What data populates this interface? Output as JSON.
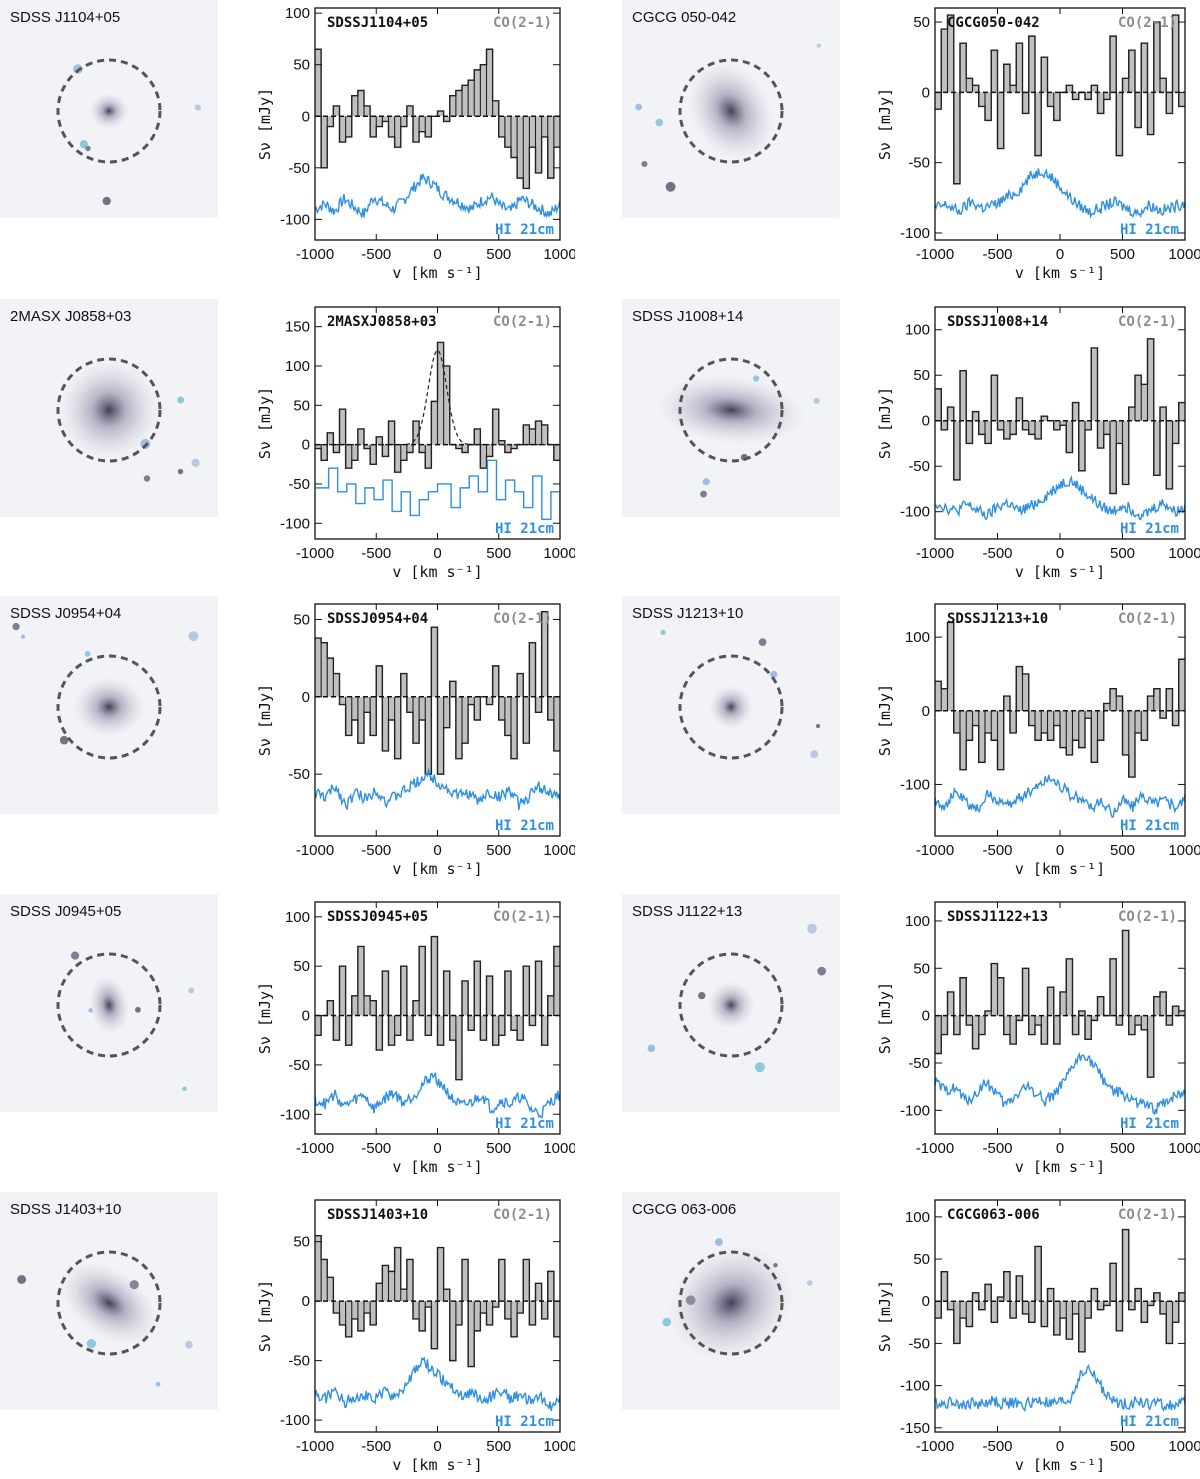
{
  "chart_data": [
    {
      "type": "bar",
      "name": "SDSSJ1104+05",
      "image_label": "SDSS J1104+05",
      "line_label": "CO(2-1)",
      "hi_label": "HI 21cm",
      "xlabel": "v [km s⁻¹]",
      "ylabel": "Sν [mJy]",
      "xlim": [
        -1000,
        1000
      ],
      "ylim": [
        -120,
        105
      ],
      "xticks": [
        -1000,
        -500,
        0,
        500,
        1000
      ],
      "yticks": [
        -100,
        -50,
        0,
        50,
        100
      ],
      "co_bins": [
        -1000,
        -950,
        -900,
        -850,
        -800,
        -750,
        -700,
        -650,
        -600,
        -550,
        -500,
        -450,
        -400,
        -350,
        -300,
        -250,
        -200,
        -150,
        -100,
        -50,
        0,
        50,
        100,
        150,
        200,
        250,
        300,
        350,
        400,
        450,
        500,
        550,
        600,
        650,
        700,
        750,
        800,
        850,
        900,
        950
      ],
      "co_values": [
        65,
        -50,
        -10,
        10,
        -25,
        -20,
        20,
        25,
        10,
        -20,
        -10,
        -5,
        -20,
        -30,
        -10,
        10,
        -25,
        -15,
        -20,
        0,
        5,
        -5,
        20,
        25,
        30,
        35,
        45,
        50,
        65,
        15,
        -20,
        -30,
        -40,
        -60,
        -70,
        -30,
        -55,
        -20,
        -60,
        -30
      ],
      "hi_values": [
        -90,
        -85,
        -92,
        -80,
        -88,
        -95,
        -78,
        -85,
        -90,
        -82,
        -70,
        -60,
        -65,
        -75,
        -80,
        -85,
        -90,
        -82,
        -78,
        -88,
        -92,
        -80,
        -85,
        -90,
        -95,
        -85
      ],
      "fit": null
    },
    {
      "type": "bar",
      "name": "CGCG050-042",
      "image_label": "CGCG 050-042",
      "line_label": "CO(2-1)",
      "hi_label": "HI 21cm",
      "xlabel": "v [km s⁻¹]",
      "ylabel": "Sν [mJy]",
      "xlim": [
        -1000,
        1000
      ],
      "ylim": [
        -105,
        60
      ],
      "xticks": [
        -1000,
        -500,
        0,
        500,
        1000
      ],
      "yticks": [
        -100,
        -50,
        0,
        50
      ],
      "co_bins": [
        -1000,
        -950,
        -900,
        -850,
        -800,
        -750,
        -700,
        -650,
        -600,
        -550,
        -500,
        -450,
        -400,
        -350,
        -300,
        -250,
        -200,
        -150,
        -100,
        -50,
        0,
        50,
        100,
        150,
        200,
        250,
        300,
        350,
        400,
        450,
        500,
        550,
        600,
        650,
        700,
        750,
        800,
        850,
        900,
        950
      ],
      "co_values": [
        -12,
        45,
        55,
        -65,
        35,
        10,
        5,
        -10,
        -20,
        30,
        -40,
        20,
        5,
        35,
        -15,
        40,
        -45,
        25,
        -10,
        -20,
        0,
        5,
        -5,
        0,
        -5,
        5,
        -15,
        -5,
        40,
        -45,
        10,
        30,
        -25,
        35,
        -30,
        50,
        10,
        -15,
        55,
        -10
      ],
      "hi_values": [
        -82,
        -80,
        -85,
        -78,
        -82,
        -80,
        -75,
        -70,
        -60,
        -55,
        -62,
        -72,
        -80,
        -85,
        -82,
        -78,
        -82,
        -86,
        -80,
        -84,
        -82,
        -78
      ],
      "fit": null
    },
    {
      "type": "bar",
      "name": "2MASXJ0858+03",
      "image_label": "2MASX J0858+03",
      "line_label": "CO(2-1)",
      "hi_label": "HI 21cm",
      "xlabel": "v [km s⁻¹]",
      "ylabel": "Sν [mJy]",
      "xlim": [
        -1000,
        1000
      ],
      "ylim": [
        -120,
        175
      ],
      "xticks": [
        -1000,
        -500,
        0,
        500,
        1000
      ],
      "yticks": [
        -100,
        -50,
        0,
        50,
        100,
        150
      ],
      "co_bins": [
        -1000,
        -950,
        -900,
        -850,
        -800,
        -750,
        -700,
        -650,
        -600,
        -550,
        -500,
        -450,
        -400,
        -350,
        -300,
        -250,
        -200,
        -150,
        -100,
        -50,
        0,
        50,
        100,
        150,
        200,
        250,
        300,
        350,
        400,
        450,
        500,
        550,
        600,
        650,
        700,
        750,
        800,
        850,
        900,
        950
      ],
      "co_values": [
        -5,
        -20,
        15,
        -10,
        45,
        -30,
        -20,
        20,
        -5,
        -25,
        10,
        -15,
        30,
        -35,
        -20,
        -10,
        30,
        -10,
        -30,
        55,
        130,
        100,
        0,
        -5,
        -10,
        0,
        20,
        -30,
        -15,
        45,
        5,
        -10,
        -5,
        0,
        25,
        20,
        30,
        25,
        0,
        -20
      ],
      "hi_values": [
        -55,
        -30,
        -60,
        -50,
        -75,
        -55,
        -70,
        -45,
        -85,
        -60,
        -90,
        -70,
        -60,
        -50,
        -80,
        -55,
        -40,
        -60,
        -20,
        -70,
        -45,
        -60,
        -80,
        -40,
        -95,
        -60,
        -100
      ],
      "fit": {
        "center": 0,
        "peak": 120,
        "sigma": 75
      }
    },
    {
      "type": "bar",
      "name": "SDSSJ1008+14",
      "image_label": "SDSS J1008+14",
      "line_label": "CO(2-1)",
      "hi_label": "HI 21cm",
      "xlabel": "v [km s⁻¹]",
      "ylabel": "Sν [mJy]",
      "xlim": [
        -1000,
        1000
      ],
      "ylim": [
        -130,
        125
      ],
      "xticks": [
        -1000,
        -500,
        0,
        500,
        1000
      ],
      "yticks": [
        -100,
        -50,
        0,
        50,
        100
      ],
      "co_bins": [
        -1000,
        -950,
        -900,
        -850,
        -800,
        -750,
        -700,
        -650,
        -600,
        -550,
        -500,
        -450,
        -400,
        -350,
        -300,
        -250,
        -200,
        -150,
        -100,
        -50,
        0,
        50,
        100,
        150,
        200,
        250,
        300,
        350,
        400,
        450,
        500,
        550,
        600,
        650,
        700,
        750,
        800,
        850,
        900,
        950
      ],
      "co_values": [
        35,
        -10,
        15,
        -65,
        55,
        -25,
        10,
        -15,
        -25,
        50,
        -10,
        -20,
        -15,
        25,
        -10,
        -15,
        -20,
        5,
        0,
        -10,
        -5,
        -35,
        20,
        -55,
        -10,
        80,
        -30,
        -15,
        -80,
        -25,
        -70,
        15,
        50,
        40,
        90,
        -60,
        15,
        -75,
        -25,
        20
      ],
      "hi_values": [
        -90,
        -95,
        -100,
        -92,
        -98,
        -105,
        -95,
        -90,
        -100,
        -95,
        -88,
        -80,
        -70,
        -65,
        -75,
        -85,
        -95,
        -100,
        -92,
        -98,
        -104,
        -96,
        -90,
        -100,
        -95
      ],
      "fit": null
    },
    {
      "type": "bar",
      "name": "SDSSJ0954+04",
      "image_label": "SDSS J0954+04",
      "line_label": "CO(2-1)",
      "hi_label": "HI 21cm",
      "xlabel": "v [km s⁻¹]",
      "ylabel": "Sν [mJy]",
      "xlim": [
        -1000,
        1000
      ],
      "ylim": [
        -90,
        60
      ],
      "xticks": [
        -1000,
        -500,
        0,
        500,
        1000
      ],
      "yticks": [
        -50,
        0,
        50
      ],
      "co_bins": [
        -1000,
        -950,
        -900,
        -850,
        -800,
        -750,
        -700,
        -650,
        -600,
        -550,
        -500,
        -450,
        -400,
        -350,
        -300,
        -250,
        -200,
        -150,
        -100,
        -50,
        0,
        50,
        100,
        150,
        200,
        250,
        300,
        350,
        400,
        450,
        500,
        550,
        600,
        650,
        700,
        750,
        800,
        850,
        900,
        950
      ],
      "co_values": [
        38,
        35,
        25,
        15,
        -5,
        -25,
        -15,
        -30,
        -10,
        -25,
        20,
        -35,
        -15,
        -40,
        15,
        -10,
        -30,
        -15,
        -50,
        45,
        -50,
        -20,
        10,
        -40,
        -30,
        -5,
        -15,
        0,
        -5,
        20,
        -15,
        -25,
        -40,
        15,
        -30,
        35,
        -10,
        55,
        -15,
        -35
      ],
      "hi_values": [
        -62,
        -65,
        -58,
        -70,
        -62,
        -66,
        -60,
        -68,
        -64,
        -60,
        -55,
        -50,
        -55,
        -60,
        -64,
        -62,
        -68,
        -62,
        -65,
        -60,
        -70,
        -64,
        -58,
        -62,
        -66
      ],
      "fit": null
    },
    {
      "type": "bar",
      "name": "SDSSJ1213+10",
      "image_label": "SDSS J1213+10",
      "line_label": "CO(2-1)",
      "hi_label": "HI 21cm",
      "xlabel": "v [km s⁻¹]",
      "ylabel": "Sν [mJy]",
      "xlim": [
        -1000,
        1000
      ],
      "ylim": [
        -170,
        145
      ],
      "xticks": [
        -1000,
        -500,
        0,
        500,
        1000
      ],
      "yticks": [
        -100,
        0,
        100
      ],
      "co_bins": [
        -1000,
        -950,
        -900,
        -850,
        -800,
        -750,
        -700,
        -650,
        -600,
        -550,
        -500,
        -450,
        -400,
        -350,
        -300,
        -250,
        -200,
        -150,
        -100,
        -50,
        0,
        50,
        100,
        150,
        200,
        250,
        300,
        350,
        400,
        450,
        500,
        550,
        600,
        650,
        700,
        750,
        800,
        850,
        900,
        950
      ],
      "co_values": [
        40,
        30,
        120,
        -30,
        -80,
        -40,
        -20,
        -70,
        -30,
        -40,
        -80,
        20,
        -30,
        60,
        50,
        -20,
        -40,
        -30,
        -40,
        -20,
        -50,
        -60,
        -40,
        -50,
        -10,
        -70,
        -40,
        10,
        30,
        20,
        -60,
        -90,
        -30,
        -40,
        20,
        30,
        -10,
        30,
        -20,
        70
      ],
      "hi_values": [
        -120,
        -130,
        -110,
        -125,
        -135,
        -115,
        -120,
        -130,
        -118,
        -110,
        -100,
        -90,
        -100,
        -115,
        -120,
        -130,
        -125,
        -140,
        -120,
        -130,
        -115,
        -125,
        -120,
        -130,
        -120
      ],
      "fit": null
    },
    {
      "type": "bar",
      "name": "SDSSJ0945+05",
      "image_label": "SDSS J0945+05",
      "line_label": "CO(2-1)",
      "hi_label": "HI 21cm",
      "xlabel": "v [km s⁻¹]",
      "ylabel": "Sν [mJy]",
      "xlim": [
        -1000,
        1000
      ],
      "ylim": [
        -120,
        115
      ],
      "xticks": [
        -1000,
        -500,
        0,
        500,
        1000
      ],
      "yticks": [
        -100,
        -50,
        0,
        50,
        100
      ],
      "co_bins": [
        -1000,
        -950,
        -900,
        -850,
        -800,
        -750,
        -700,
        -650,
        -600,
        -550,
        -500,
        -450,
        -400,
        -350,
        -300,
        -250,
        -200,
        -150,
        -100,
        -50,
        0,
        50,
        100,
        150,
        200,
        250,
        300,
        350,
        400,
        450,
        500,
        550,
        600,
        650,
        700,
        750,
        800,
        850,
        900,
        950
      ],
      "co_values": [
        -20,
        0,
        15,
        -25,
        50,
        -30,
        20,
        70,
        20,
        15,
        -35,
        45,
        -30,
        -20,
        50,
        -25,
        15,
        70,
        -20,
        80,
        -30,
        45,
        -25,
        -65,
        35,
        -15,
        55,
        -25,
        40,
        -30,
        -20,
        45,
        -15,
        -25,
        50,
        -10,
        55,
        -30,
        20,
        70
      ],
      "hi_values": [
        -85,
        -90,
        -80,
        -92,
        -86,
        -80,
        -95,
        -85,
        -78,
        -88,
        -82,
        -70,
        -60,
        -70,
        -85,
        -92,
        -88,
        -80,
        -95,
        -86,
        -90,
        -82,
        -95,
        -100,
        -88,
        -80
      ],
      "fit": null
    },
    {
      "type": "bar",
      "name": "SDSSJ1122+13",
      "image_label": "SDSS J1122+13",
      "line_label": "CO(2-1)",
      "hi_label": "HI 21cm",
      "xlabel": "v [km s⁻¹]",
      "ylabel": "Sν [mJy]",
      "xlim": [
        -1000,
        1000
      ],
      "ylim": [
        -125,
        120
      ],
      "xticks": [
        -1000,
        -500,
        0,
        500,
        1000
      ],
      "yticks": [
        -100,
        -50,
        0,
        50,
        100
      ],
      "co_bins": [
        -1000,
        -950,
        -900,
        -850,
        -800,
        -750,
        -700,
        -650,
        -600,
        -550,
        -500,
        -450,
        -400,
        -350,
        -300,
        -250,
        -200,
        -150,
        -100,
        -50,
        0,
        50,
        100,
        150,
        200,
        250,
        300,
        350,
        400,
        450,
        500,
        550,
        600,
        650,
        700,
        750,
        800,
        850,
        900,
        950
      ],
      "co_values": [
        -40,
        -20,
        25,
        -20,
        40,
        -10,
        -35,
        -20,
        5,
        55,
        40,
        -20,
        -30,
        -5,
        50,
        -20,
        -10,
        -30,
        30,
        -30,
        25,
        60,
        -20,
        5,
        -25,
        -5,
        20,
        0,
        60,
        -10,
        90,
        -20,
        -10,
        -15,
        -65,
        20,
        25,
        -10,
        10,
        5
      ],
      "hi_values": [
        -70,
        -80,
        -75,
        -90,
        -85,
        -70,
        -80,
        -95,
        -85,
        -75,
        -80,
        -90,
        -82,
        -70,
        -50,
        -40,
        -55,
        -70,
        -80,
        -85,
        -90,
        -95,
        -100,
        -90,
        -85,
        -80
      ],
      "fit": null
    },
    {
      "type": "bar",
      "name": "SDSSJ1403+10",
      "image_label": "SDSS J1403+10",
      "line_label": "CO(2-1)",
      "hi_label": "HI 21cm",
      "xlabel": "v [km s⁻¹]",
      "ylabel": "Sν [mJy]",
      "xlim": [
        -1000,
        1000
      ],
      "ylim": [
        -110,
        85
      ],
      "xticks": [
        -1000,
        -500,
        0,
        500,
        1000
      ],
      "yticks": [
        -100,
        -50,
        0,
        50
      ],
      "co_bins": [
        -1000,
        -950,
        -900,
        -850,
        -800,
        -750,
        -700,
        -650,
        -600,
        -550,
        -500,
        -450,
        -400,
        -350,
        -300,
        -250,
        -200,
        -150,
        -100,
        -50,
        0,
        50,
        100,
        150,
        200,
        250,
        300,
        350,
        400,
        450,
        500,
        550,
        600,
        650,
        700,
        750,
        800,
        850,
        900,
        950
      ],
      "co_values": [
        55,
        35,
        20,
        -10,
        -20,
        -30,
        -15,
        -25,
        -10,
        -20,
        15,
        30,
        25,
        45,
        10,
        35,
        -15,
        -25,
        -5,
        -40,
        45,
        10,
        -50,
        -20,
        35,
        -55,
        -25,
        -10,
        -20,
        -5,
        35,
        -15,
        -30,
        -10,
        35,
        -20,
        15,
        -15,
        25,
        -30
      ],
      "hi_values": [
        -78,
        -82,
        -75,
        -85,
        -80,
        -78,
        -84,
        -76,
        -80,
        -74,
        -62,
        -50,
        -58,
        -66,
        -72,
        -80,
        -76,
        -84,
        -80,
        -75,
        -82,
        -78,
        -86,
        -80,
        -88,
        -82
      ],
      "fit": null
    },
    {
      "type": "bar",
      "name": "CGCG063-006",
      "image_label": "CGCG 063-006",
      "line_label": "CO(2-1)",
      "hi_label": "HI 21cm",
      "xlabel": "v [km s⁻¹]",
      "ylabel": "Sν [mJy]",
      "xlim": [
        -1000,
        1000
      ],
      "ylim": [
        -155,
        120
      ],
      "xticks": [
        -1000,
        -500,
        0,
        500,
        1000
      ],
      "yticks": [
        -150,
        -100,
        -50,
        0,
        50,
        100
      ],
      "co_bins": [
        -1000,
        -950,
        -900,
        -850,
        -800,
        -750,
        -700,
        -650,
        -600,
        -550,
        -500,
        -450,
        -400,
        -350,
        -300,
        -250,
        -200,
        -150,
        -100,
        -50,
        0,
        50,
        100,
        150,
        200,
        250,
        300,
        350,
        400,
        450,
        500,
        550,
        600,
        650,
        700,
        750,
        800,
        850,
        900,
        950
      ],
      "co_values": [
        -20,
        35,
        -10,
        -50,
        -20,
        -30,
        10,
        -10,
        20,
        -25,
        5,
        35,
        -20,
        30,
        -15,
        -25,
        65,
        -30,
        15,
        -40,
        -20,
        -45,
        -15,
        -60,
        -20,
        15,
        -10,
        -5,
        45,
        -35,
        85,
        -10,
        15,
        -25,
        -5,
        10,
        -15,
        -50,
        -25,
        10
      ],
      "hi_values": [
        -120,
        -122,
        -118,
        -124,
        -120,
        -122,
        -118,
        -122,
        -120,
        -124,
        -120,
        -118,
        -122,
        -120,
        -118,
        -90,
        -80,
        -95,
        -115,
        -120,
        -122,
        -118,
        -122,
        -120,
        -124,
        -122,
        -120
      ],
      "fit": null
    }
  ]
}
